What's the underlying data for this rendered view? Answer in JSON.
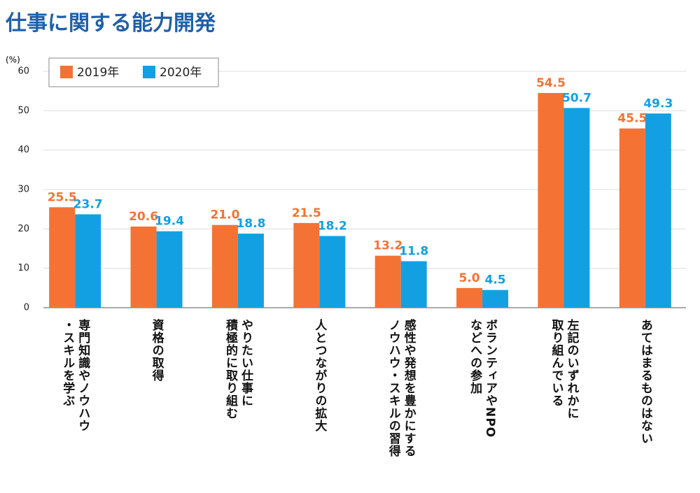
{
  "chart_data": {
    "type": "bar",
    "title": "仕事に関する能力開発",
    "unit_label": "(%)",
    "categories": [
      "専門知識やノウハウ\n・スキルを学ぶ",
      "資格の取得",
      "やりたい仕事に\n積極的に取り組む",
      "人とつながりの拡大",
      "感性や発想を豊かにする\nノウハウ・スキルの習得",
      "ボランティアやNPO\nなどへの参加",
      "左記のいずれかに\n取り組んでいる",
      "あてはまるものはない"
    ],
    "series": [
      {
        "name": "2019年",
        "color": "#f47334",
        "values": [
          25.5,
          20.6,
          21.0,
          21.5,
          13.2,
          5.0,
          54.5,
          45.5
        ],
        "value_labels": [
          "25.5",
          "20.6",
          "21.0",
          "21.5",
          "13.2",
          "5.0",
          "54.5",
          "45.5"
        ]
      },
      {
        "name": "2020年",
        "color": "#13a0e3",
        "values": [
          23.7,
          19.4,
          18.8,
          18.2,
          11.8,
          4.5,
          50.7,
          49.3
        ],
        "value_labels": [
          "23.7",
          "19.4",
          "18.8",
          "18.2",
          "11.8",
          "4.5",
          "50.7",
          "49.3"
        ]
      }
    ],
    "ylim": [
      0,
      60
    ],
    "yticks": [
      0,
      10,
      20,
      30,
      40,
      50,
      60
    ],
    "grid": true,
    "legend": "top-left"
  }
}
